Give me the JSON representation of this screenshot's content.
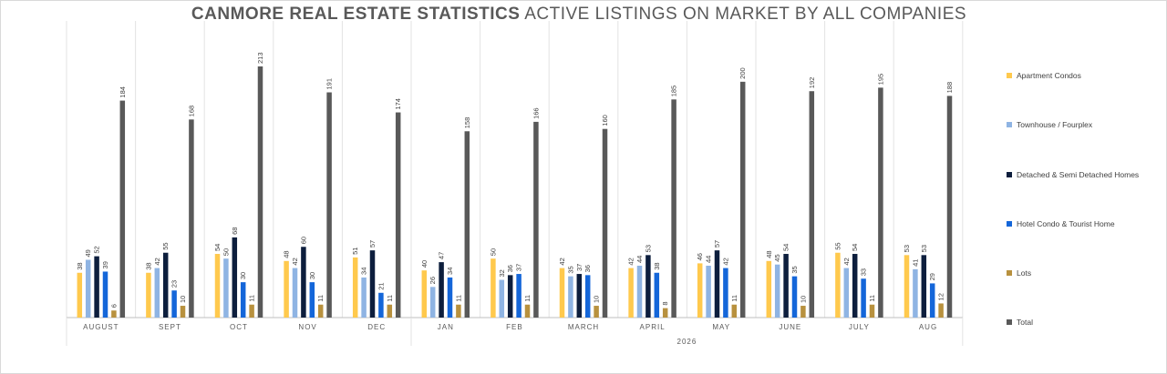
{
  "title": {
    "bold": "CANMORE REAL ESTATE STATISTICS",
    "rest": "ACTIVE LISTINGS ON MARKET BY ALL COMPANIES"
  },
  "chart_data": {
    "type": "bar",
    "categories": [
      "AUGUST",
      "SEPT",
      "OCT",
      "NOV",
      "DEC",
      "JAN",
      "FEB",
      "MARCH",
      "APRIL",
      "MAY",
      "JUNE",
      "JULY",
      "AUG"
    ],
    "year_group": {
      "label": "2026",
      "from_index": 5,
      "to_index": 12
    },
    "series": [
      {
        "name": "Apartment Condos",
        "color": "#ffc94d",
        "values": [
          38,
          38,
          54,
          48,
          51,
          40,
          50,
          42,
          42,
          46,
          48,
          55,
          53
        ]
      },
      {
        "name": "Townhouse / Fourplex",
        "color": "#8fb4e3",
        "values": [
          49,
          42,
          50,
          42,
          34,
          26,
          32,
          35,
          44,
          44,
          45,
          42,
          41
        ]
      },
      {
        "name": "Detached & Semi Detached Homes",
        "color": "#0d1e3d",
        "values": [
          52,
          55,
          68,
          60,
          57,
          47,
          36,
          37,
          53,
          57,
          54,
          54,
          53
        ]
      },
      {
        "name": "Hotel Condo & Tourist Home",
        "color": "#1466d9",
        "values": [
          39,
          23,
          30,
          30,
          21,
          34,
          37,
          36,
          38,
          42,
          35,
          33,
          29
        ]
      },
      {
        "name": "Lots",
        "color": "#b8913e",
        "values": [
          6,
          10,
          11,
          11,
          11,
          11,
          11,
          10,
          8,
          11,
          10,
          11,
          12
        ]
      },
      {
        "name": "Total",
        "color": "#595959",
        "values": [
          184,
          168,
          213,
          191,
          174,
          158,
          166,
          160,
          185,
          200,
          192,
          195,
          188
        ]
      }
    ],
    "ylim": [
      0,
      213
    ],
    "data_labels": true,
    "legend_position": "right"
  }
}
